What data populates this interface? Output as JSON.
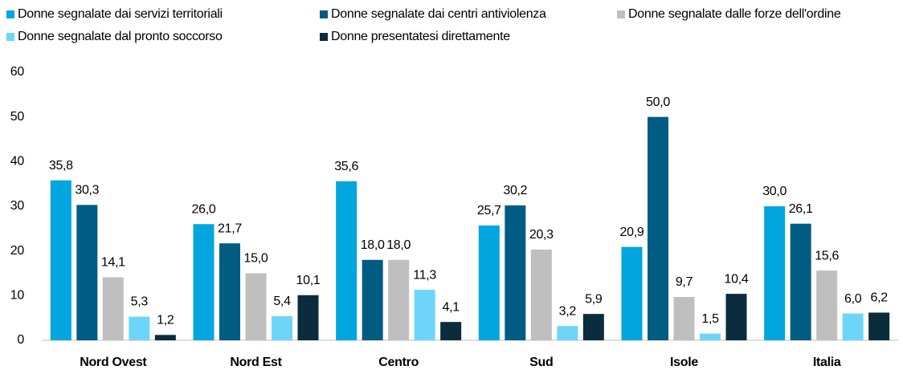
{
  "chart_data": {
    "type": "bar",
    "categories": [
      "Nord Ovest",
      "Nord Est",
      "Centro",
      "Sud",
      "Isole",
      "Italia"
    ],
    "series": [
      {
        "name": "Donne segnalate dai servizi territoriali",
        "color": "#00a6dd",
        "values": [
          35.8,
          26.0,
          35.6,
          25.7,
          20.9,
          30.0
        ],
        "value_labels": [
          "35,8",
          "26,0",
          "35,6",
          "25,7",
          "20,9",
          "30,0"
        ]
      },
      {
        "name": "Donne segnalate dai centri antiviolenza",
        "color": "#005c82",
        "values": [
          30.3,
          21.7,
          18.0,
          30.2,
          50.0,
          26.1
        ],
        "value_labels": [
          "30,3",
          "21,7",
          "18,0",
          "30,2",
          "50,0",
          "26,1"
        ]
      },
      {
        "name": "Donne segnalate dalle forze dell'ordine",
        "color": "#bfbfbf",
        "values": [
          14.1,
          15.0,
          18.0,
          20.3,
          9.7,
          15.6
        ],
        "value_labels": [
          "14,1",
          "15,0",
          "18,0",
          "20,3",
          "9,7",
          "15,6"
        ]
      },
      {
        "name": "Donne segnalate dal pronto soccorso",
        "color": "#6dd6f8",
        "values": [
          5.3,
          5.4,
          11.3,
          3.2,
          1.5,
          6.0
        ],
        "value_labels": [
          "5,3",
          "5,4",
          "11,3",
          "3,2",
          "1,5",
          "6,0"
        ]
      },
      {
        "name": "Donne presentatesi direttamente",
        "color": "#0b2c3d",
        "values": [
          1.2,
          10.1,
          4.1,
          5.9,
          10.4,
          6.2
        ],
        "value_labels": [
          "1,2",
          "10,1",
          "4,1",
          "5,9",
          "10,4",
          "6,2"
        ]
      }
    ],
    "ylim": [
      0,
      60
    ],
    "yticks": [
      0,
      10,
      20,
      30,
      40,
      50,
      60
    ],
    "grid": false,
    "legend": "top"
  }
}
